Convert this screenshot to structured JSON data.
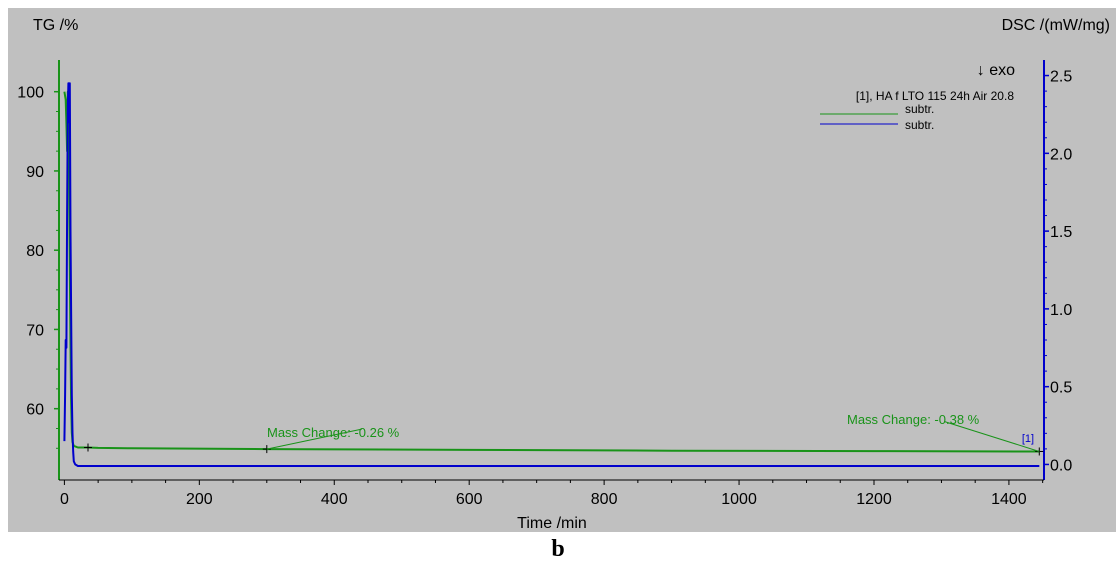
{
  "caption": "b",
  "chart_data": {
    "type": "line",
    "xlabel": "Time /min",
    "ylabel_left": "TG /%",
    "ylabel_right": "DSC /(mW/mg)",
    "exo_label": "↓ exo",
    "legend_title": "[1], HA f LTO 115 24h Air 20.8",
    "legend_placement": "top-right",
    "x_ticks": [
      0,
      200,
      400,
      600,
      800,
      1000,
      1200,
      1400
    ],
    "xlim": [
      -8,
      1452
    ],
    "y_left_ticks": [
      60,
      70,
      80,
      90,
      100
    ],
    "ylim_left": [
      51,
      104
    ],
    "y_right_ticks": [
      0.0,
      0.5,
      1.0,
      1.5,
      2.0,
      2.5
    ],
    "y_right_tick_labels": [
      "0.0",
      "0.5",
      "1.0",
      "1.5",
      "2.0",
      "2.5"
    ],
    "ylim_right": [
      -0.1,
      2.6
    ],
    "grid": false,
    "colors": {
      "background": "#c0c0c0",
      "tg": "#199319",
      "dsc": "#0000cc",
      "marker": "#000000"
    },
    "series": [
      {
        "name": "subtr.",
        "axis": "left",
        "color": "#199319",
        "x": [
          0,
          2,
          3,
          4,
          5,
          6,
          7,
          8,
          9,
          10,
          11,
          12,
          14,
          17,
          20,
          25,
          35,
          50,
          100,
          300,
          600,
          900,
          1200,
          1445
        ],
        "y": [
          100,
          99,
          96,
          92.5,
          100,
          96,
          89,
          78,
          68,
          61,
          57,
          55.8,
          55.3,
          55.2,
          55.1,
          55.1,
          55.1,
          55.05,
          55.0,
          54.9,
          54.8,
          54.7,
          54.65,
          54.6
        ]
      },
      {
        "name": "subtr.",
        "axis": "right",
        "color": "#0000cc",
        "x": [
          0,
          1,
          2,
          3,
          4,
          5,
          6,
          7,
          8,
          9,
          10,
          11,
          12,
          13,
          14,
          16,
          20,
          30,
          50,
          100,
          300,
          700,
          1100,
          1445
        ],
        "y": [
          0.15,
          0.45,
          0.8,
          0.75,
          1.6,
          2.3,
          2.45,
          2.2,
          2.45,
          1.5,
          1.0,
          0.45,
          0.2,
          0.08,
          0.02,
          0.0,
          -0.01,
          -0.01,
          -0.01,
          -0.01,
          -0.01,
          -0.01,
          -0.01,
          -0.01
        ]
      }
    ],
    "annotations": [
      {
        "text": "Mass Change: -0.26 %",
        "series": "tg",
        "from_x": 35,
        "to_x": 300
      },
      {
        "text": "Mass Change: -0.38 %",
        "series": "tg",
        "from_x": 300,
        "to_x": 1445
      }
    ],
    "end_label": "[1]"
  }
}
